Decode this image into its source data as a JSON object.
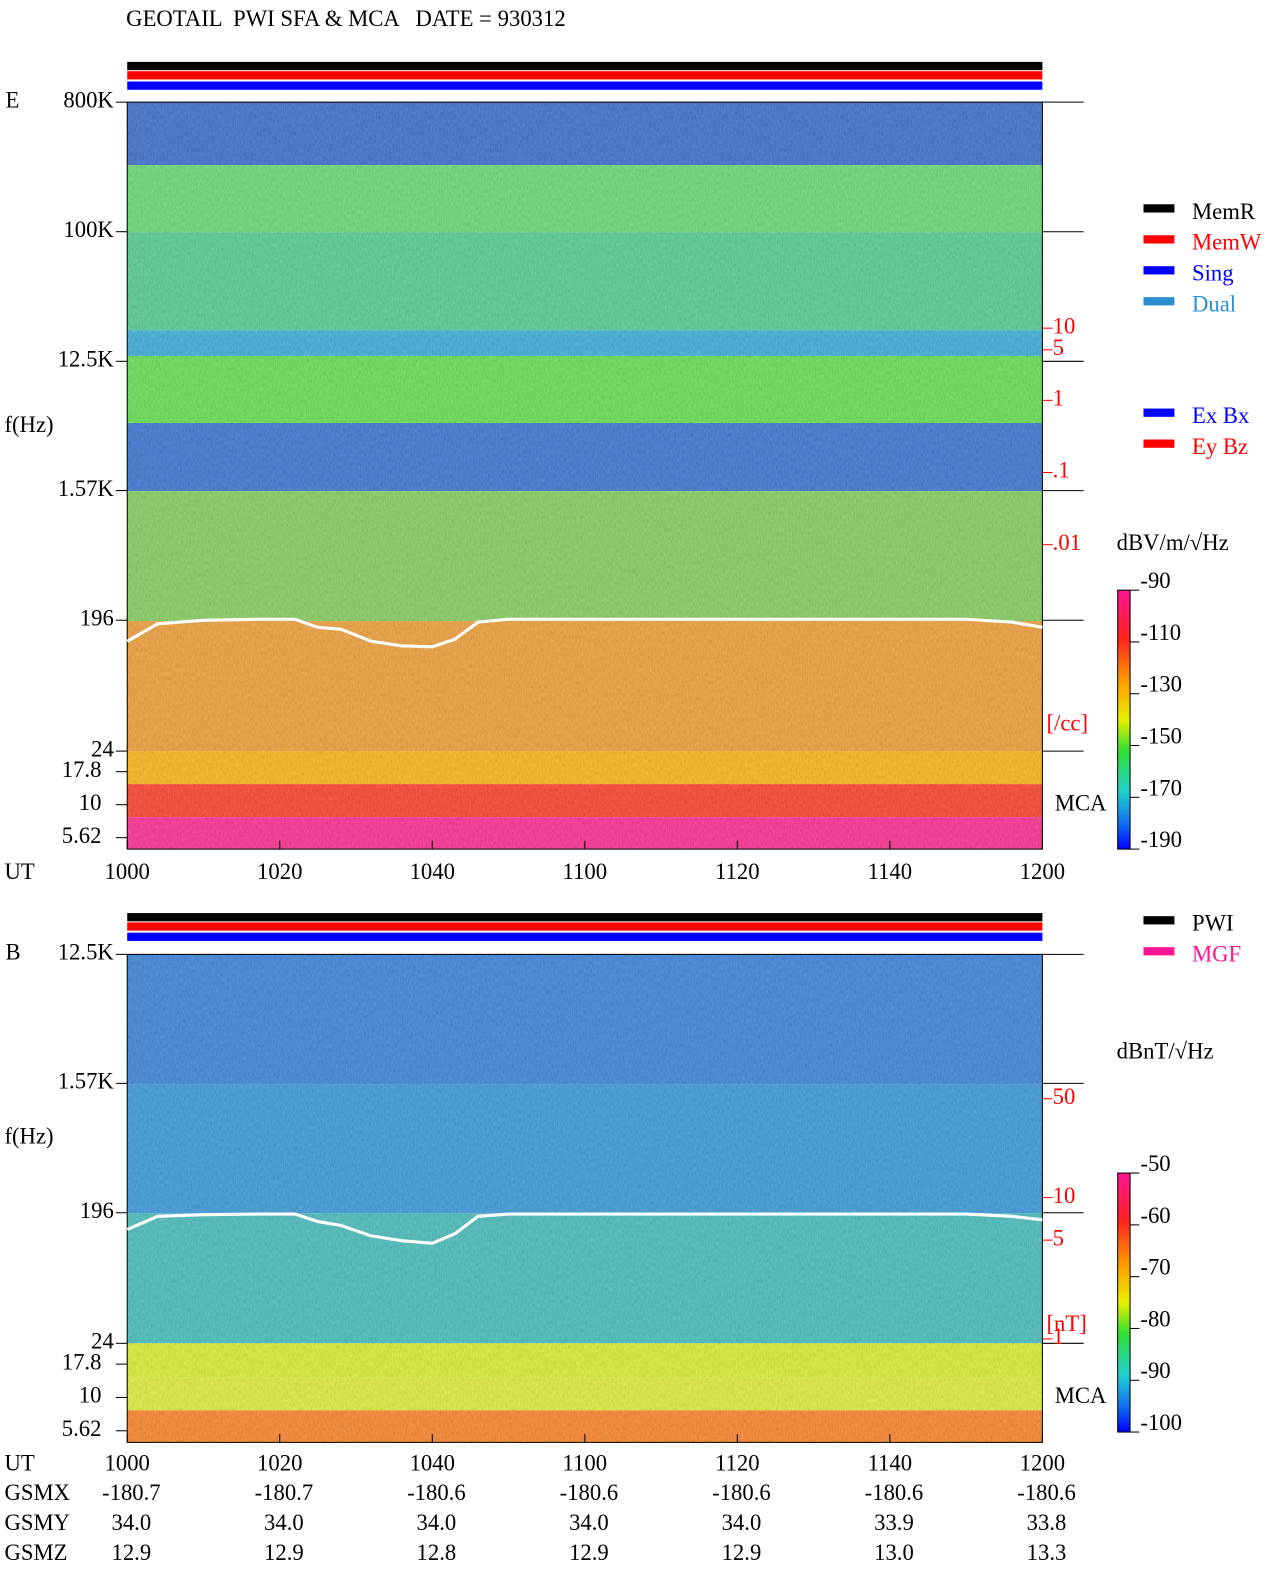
{
  "title": "GEOTAIL  PWI SFA & MCA   DATE = 930312",
  "chart_data": [
    {
      "type": "spectrogram",
      "label": "E",
      "y_label": "f(Hz)",
      "x_label": "UT",
      "log_y": true,
      "xlim": [
        600,
        720
      ],
      "xticks": [
        {
          "value": 600,
          "label": "1000"
        },
        {
          "value": 620,
          "label": "1020"
        },
        {
          "value": 640,
          "label": "1040"
        },
        {
          "value": 660,
          "label": "1100"
        },
        {
          "value": 680,
          "label": "1120"
        },
        {
          "value": 700,
          "label": "1140"
        },
        {
          "value": 720,
          "label": "1200"
        }
      ],
      "ylim": [
        24,
        800000
      ],
      "yticks": [
        {
          "value": 800000,
          "label": "800K"
        },
        {
          "value": 100000,
          "label": "100K"
        },
        {
          "value": 12500,
          "label": "12.5K"
        },
        {
          "value": 1570,
          "label": "1.57K"
        },
        196,
        24
      ],
      "mca_label": "MCA",
      "mca_ylim": [
        4.6,
        25.5
      ],
      "mca_yticks": [
        17.8,
        10,
        5.62
      ],
      "y2_label": "[/cc]",
      "y2lim": [
        0.005,
        20
      ],
      "y2ticks": [
        10,
        5,
        1,
        {
          "value": 0.1,
          "label": ".1"
        },
        {
          "value": 0.01,
          "label": ".01"
        }
      ],
      "colorbar": {
        "label": "dBV/m/√Hz",
        "lim": [
          -190,
          -90
        ],
        "ticks": [
          -90,
          -110,
          -130,
          -150,
          -170,
          -190
        ]
      },
      "legends": [
        [
          {
            "name": "MemR",
            "color": "#000000"
          },
          {
            "name": "MemW",
            "color": "#ff0000"
          },
          {
            "name": "Sing",
            "color": "#0000ff"
          },
          {
            "name": "Dual",
            "color": "#2a8fd0"
          }
        ],
        [
          {
            "name": "Ex Bx",
            "color": "#0000ff"
          },
          {
            "name": "Ey Bz",
            "color": "#ff0000"
          }
        ]
      ],
      "series": [
        {
          "color": "#ffffff",
          "x": [
            600,
            604,
            610,
            617,
            622,
            625,
            628,
            632,
            636,
            640,
            643,
            646,
            650,
            660,
            680,
            700,
            710,
            716,
            720
          ],
          "values": [
            140,
            185,
            196,
            199,
            199,
            175,
            170,
            140,
            130,
            128,
            145,
            190,
            199,
            199,
            199,
            199,
            199,
            190,
            175
          ]
        }
      ]
    },
    {
      "type": "spectrogram",
      "label": "B",
      "y_label": "f(Hz)",
      "x_label": "UT",
      "log_y": true,
      "xlim": [
        600,
        720
      ],
      "xticks": [
        {
          "value": 600,
          "label": "1000"
        },
        {
          "value": 620,
          "label": "1020"
        },
        {
          "value": 640,
          "label": "1040"
        },
        {
          "value": 660,
          "label": "1100"
        },
        {
          "value": 680,
          "label": "1120"
        },
        {
          "value": 700,
          "label": "1140"
        },
        {
          "value": 720,
          "label": "1200"
        }
      ],
      "ylim": [
        24,
        12500
      ],
      "yticks": [
        {
          "value": 12500,
          "label": "12.5K"
        },
        {
          "value": 1570,
          "label": "1.57K"
        },
        196,
        24
      ],
      "mca_label": "MCA",
      "mca_ylim": [
        4.6,
        25.5
      ],
      "mca_yticks": [
        17.8,
        10,
        5.62
      ],
      "y2_label": "[nT]",
      "y2lim": [
        0.9,
        80
      ],
      "y2ticks": [
        50,
        10,
        5,
        1
      ],
      "colorbar": {
        "label": "dBnT/√Hz",
        "lim": [
          -100,
          -50
        ],
        "ticks": [
          -50,
          -60,
          -70,
          -80,
          -90,
          -100
        ]
      },
      "legends": [
        [
          {
            "name": "PWI",
            "color": "#000000"
          },
          {
            "name": "MGF",
            "color": "#ff1493"
          }
        ]
      ],
      "series": [
        {
          "color": "#ffffff",
          "x": [
            600,
            604,
            610,
            617,
            622,
            625,
            628,
            632,
            636,
            640,
            643,
            646,
            650,
            660,
            680,
            700,
            710,
            716,
            720
          ],
          "values": [
            150,
            185,
            190,
            192,
            192,
            170,
            160,
            135,
            125,
            120,
            140,
            185,
            192,
            192,
            192,
            192,
            192,
            185,
            175
          ]
        }
      ]
    }
  ],
  "orbit": {
    "rows": [
      {
        "name": "GSMX",
        "values": [
          "-180.7",
          "-180.7",
          "-180.6",
          "-180.6",
          "-180.6",
          "-180.6",
          "-180.6"
        ]
      },
      {
        "name": "GSMY",
        "values": [
          "34.0",
          "34.0",
          "34.0",
          "34.0",
          "34.0",
          "33.9",
          "33.8"
        ]
      },
      {
        "name": "GSMZ",
        "values": [
          "12.9",
          "12.9",
          "12.8",
          "12.9",
          "12.9",
          "13.0",
          "13.3"
        ]
      }
    ]
  }
}
